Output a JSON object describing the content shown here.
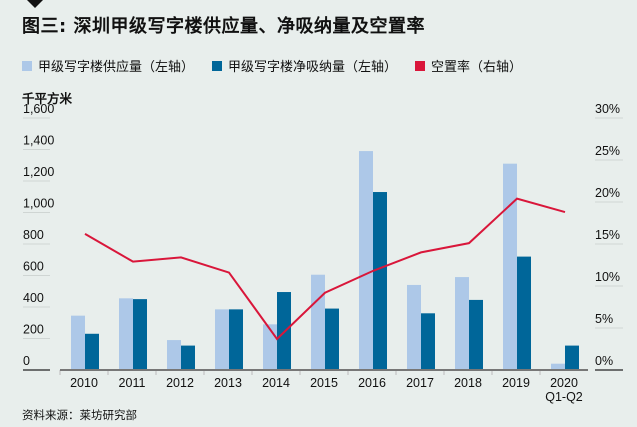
{
  "title": "图三: 深圳甲级写字楼供应量、净吸纳量及空置率",
  "source": "资料来源：莱坊研究部",
  "chart_data": {
    "type": "bar+line",
    "title": "图三: 深圳甲级写字楼供应量、净吸纳量及空置率",
    "ylabel_left": "千平方米",
    "categories": [
      "2010",
      "2011",
      "2012",
      "2013",
      "2014",
      "2015",
      "2016",
      "2017",
      "2018",
      "2019",
      "2020"
    ],
    "category_sublabels": [
      "",
      "",
      "",
      "",
      "",
      "",
      "",
      "",
      "",
      "",
      "Q1-Q2"
    ],
    "left_axis": {
      "range": [
        0,
        1600
      ],
      "ticks": [
        "0",
        "200",
        "400",
        "600",
        "800",
        "1,000",
        "1,200",
        "1,400",
        "1,600"
      ],
      "tick_values": [
        0,
        200,
        400,
        600,
        800,
        1000,
        1200,
        1400,
        1600
      ]
    },
    "right_axis": {
      "range": [
        0,
        30
      ],
      "ticks": [
        "0%",
        "5%",
        "10%",
        "15%",
        "20%",
        "25%",
        "30%"
      ],
      "tick_values": [
        0,
        5,
        10,
        15,
        20,
        25,
        30
      ]
    },
    "series": [
      {
        "name": "甲级写字楼供应量（左轴）",
        "type": "bar",
        "axis": "left",
        "color": "#adc8e8",
        "values": [
          345,
          455,
          190,
          385,
          290,
          605,
          1390,
          540,
          590,
          1310,
          40
        ]
      },
      {
        "name": "甲级写字楼净吸纳量（左轴）",
        "type": "bar",
        "axis": "left",
        "color": "#006699",
        "values": [
          230,
          450,
          155,
          385,
          495,
          390,
          1130,
          360,
          445,
          720,
          155
        ]
      },
      {
        "name": "空置率（右轴）",
        "type": "line",
        "axis": "right",
        "color": "#d9163a",
        "values": [
          16.2,
          12.9,
          13.4,
          11.6,
          3.7,
          9.2,
          11.8,
          14.0,
          15.1,
          20.4,
          18.8
        ]
      }
    ],
    "legend_position": "top",
    "grid": false
  }
}
